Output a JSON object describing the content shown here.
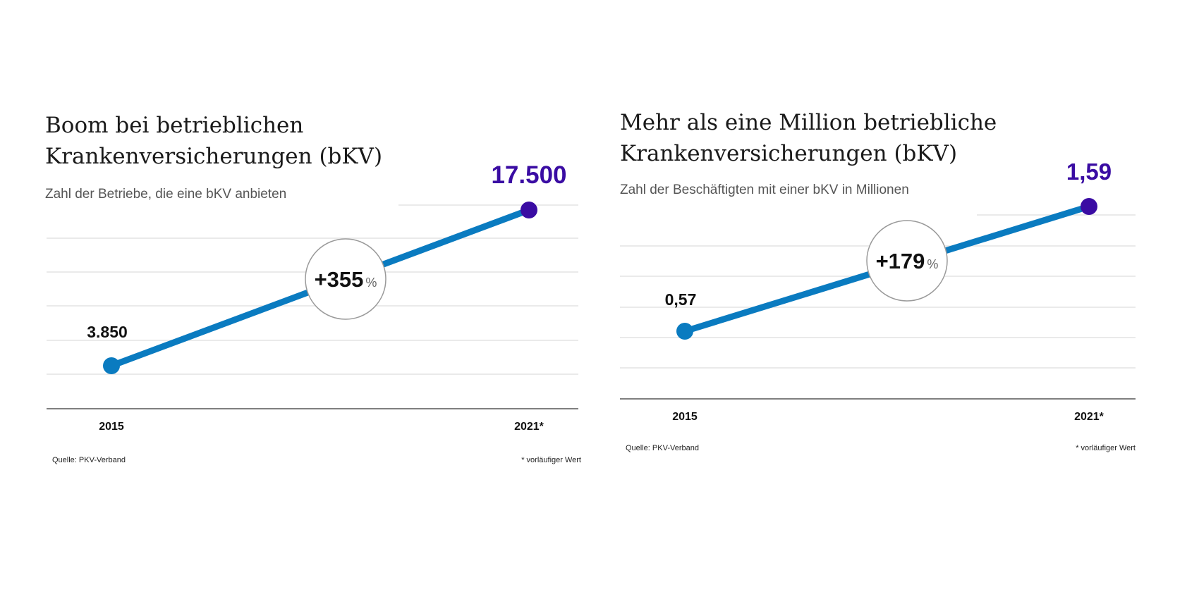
{
  "colors": {
    "line": "#0a7bc0",
    "start_point": "#0a7bc0",
    "end_point": "#3a0ca3",
    "end_value": "#3a0ca3",
    "grid": "#e3e3e3",
    "axis": "#555555",
    "badge_border": "#9a9a9a",
    "text": "#111111"
  },
  "chart_data": [
    {
      "type": "line",
      "title": "Boom bei betrieblichen Krankenversicherungen (bKV)",
      "title_lines": [
        "Boom bei betrieblichen",
        "Krankenversicherungen (bKV)"
      ],
      "subtitle": "Zahl der Betriebe, die eine bKV anbieten",
      "categories": [
        "2015",
        "2021*"
      ],
      "values": [
        3850,
        17500
      ],
      "value_labels": [
        "3.850",
        "17.500"
      ],
      "change_label": "+355",
      "change_unit": "%",
      "ylim": [
        0,
        20000
      ],
      "grid": true,
      "source": "Quelle: PKV-Verband",
      "note": "* vorläufiger Wert"
    },
    {
      "type": "line",
      "title": "Mehr als eine Million betriebliche Krankenversicherungen (bKV)",
      "title_lines": [
        "Mehr als eine Million betriebliche",
        "Krankenversicherungen (bKV)"
      ],
      "subtitle": "Zahl der Beschäftigten mit einer bKV in Millionen",
      "categories": [
        "2015",
        "2021*"
      ],
      "values": [
        0.57,
        1.59
      ],
      "value_labels": [
        "0,57",
        "1,59"
      ],
      "change_label": "+179",
      "change_unit": "%",
      "ylim": [
        0,
        1.8
      ],
      "grid": true,
      "source": "Quelle: PKV-Verband",
      "note": "* vorläufiger Wert"
    }
  ]
}
